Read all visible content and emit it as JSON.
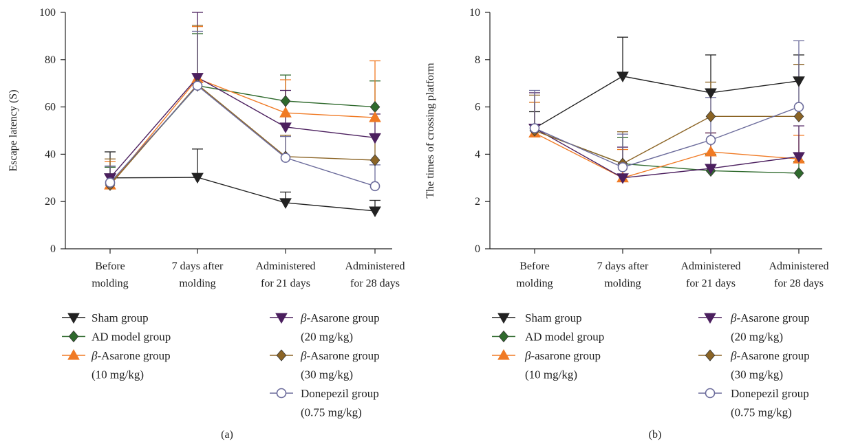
{
  "chart_data": [
    {
      "type": "line",
      "panel_label": "(a)",
      "ylabel": "Escape latency (S)",
      "ylim": [
        0,
        100
      ],
      "yticks": [
        "0",
        "20",
        "40",
        "60",
        "80",
        "100"
      ],
      "categories": [
        [
          "Before",
          "molding"
        ],
        [
          "7 days after",
          "molding"
        ],
        [
          "Administered",
          "for 21 days"
        ],
        [
          "Administered",
          "for 28 days"
        ]
      ],
      "series": [
        {
          "name": [
            "Sham group"
          ],
          "color": "#222222",
          "marker": "tri-down",
          "values": [
            30,
            30.2,
            19.5,
            16
          ],
          "errors": [
            11,
            12,
            4.5,
            4.5
          ]
        },
        {
          "name": [
            "AD model group"
          ],
          "color": "#2f6a2d",
          "marker": "diamond",
          "values": [
            27.5,
            69,
            62.5,
            60
          ],
          "errors": [
            7,
            22,
            11,
            11
          ]
        },
        {
          "name": [
            "β-Asarone group",
            "(10 mg/kg)"
          ],
          "color": "#f07a24",
          "marker": "tri-up",
          "values": [
            27,
            72,
            57.5,
            55.5
          ],
          "errors": [
            10,
            22,
            14,
            24
          ]
        },
        {
          "name": [
            "β-Asarone group",
            "(20 mg/kg)"
          ],
          "color": "#4b1f5e",
          "marker": "tri-down",
          "values": [
            30,
            72.5,
            51.5,
            47
          ],
          "errors": [
            5,
            28,
            15.5,
            10
          ]
        },
        {
          "name": [
            "β-Asarone group",
            "(30 mg/kg)"
          ],
          "color": "#8b6425",
          "marker": "diamond",
          "values": [
            27,
            69.5,
            39,
            37.5
          ],
          "errors": [
            11,
            25,
            9,
            11
          ]
        },
        {
          "name": [
            "Donepezil group",
            "(0.75 mg/kg)"
          ],
          "color": "#6b6b9b",
          "marker": "circle",
          "values": [
            28,
            69,
            38.5,
            26.5
          ],
          "errors": [
            7,
            23,
            9,
            9
          ]
        }
      ]
    },
    {
      "type": "line",
      "panel_label": "(b)",
      "ylabel": "The times of crossing platform",
      "ylim": [
        0,
        10
      ],
      "yticks": [
        "0",
        "2",
        "4",
        "6",
        "8",
        "10"
      ],
      "categories": [
        [
          "Before",
          "molding"
        ],
        [
          "7 days after",
          "molding"
        ],
        [
          "Administered",
          "for 21 days"
        ],
        [
          "Administered",
          "for 28 days"
        ]
      ],
      "series": [
        {
          "name": [
            "Sham group"
          ],
          "color": "#222222",
          "marker": "tri-down",
          "values": [
            5.1,
            7.3,
            6.6,
            7.1
          ],
          "errors": [
            0.7,
            1.65,
            1.6,
            1.1
          ]
        },
        {
          "name": [
            "AD model group"
          ],
          "color": "#2f6a2d",
          "marker": "diamond",
          "values": [
            5.0,
            3.6,
            3.3,
            3.2
          ],
          "errors": [
            1.2,
            1.1,
            0.7,
            0.5
          ]
        },
        {
          "name": [
            "β-asarone group",
            "(10 mg/kg)"
          ],
          "color": "#f07a24",
          "marker": "tri-up",
          "values": [
            4.9,
            3.0,
            4.1,
            3.8
          ],
          "errors": [
            1.3,
            1.2,
            0.8,
            1.0
          ]
        },
        {
          "name": [
            "β-Asarone group",
            "(20 mg/kg)"
          ],
          "color": "#4b1f5e",
          "marker": "tri-down",
          "values": [
            5.1,
            3.0,
            3.4,
            3.9
          ],
          "errors": [
            1.5,
            1.3,
            1.5,
            1.3
          ]
        },
        {
          "name": [
            "β-Asarone group",
            "(30 mg/kg)"
          ],
          "color": "#8b6425",
          "marker": "diamond",
          "values": [
            5.0,
            3.6,
            5.6,
            5.6
          ],
          "errors": [
            1.5,
            1.35,
            1.45,
            2.2
          ]
        },
        {
          "name": [
            "Donepezil group",
            "(0.75 mg/kg)"
          ],
          "color": "#6b6b9b",
          "marker": "circle",
          "values": [
            5.1,
            3.45,
            4.6,
            6.0
          ],
          "errors": [
            1.6,
            1.4,
            1.8,
            2.8
          ]
        }
      ]
    }
  ]
}
